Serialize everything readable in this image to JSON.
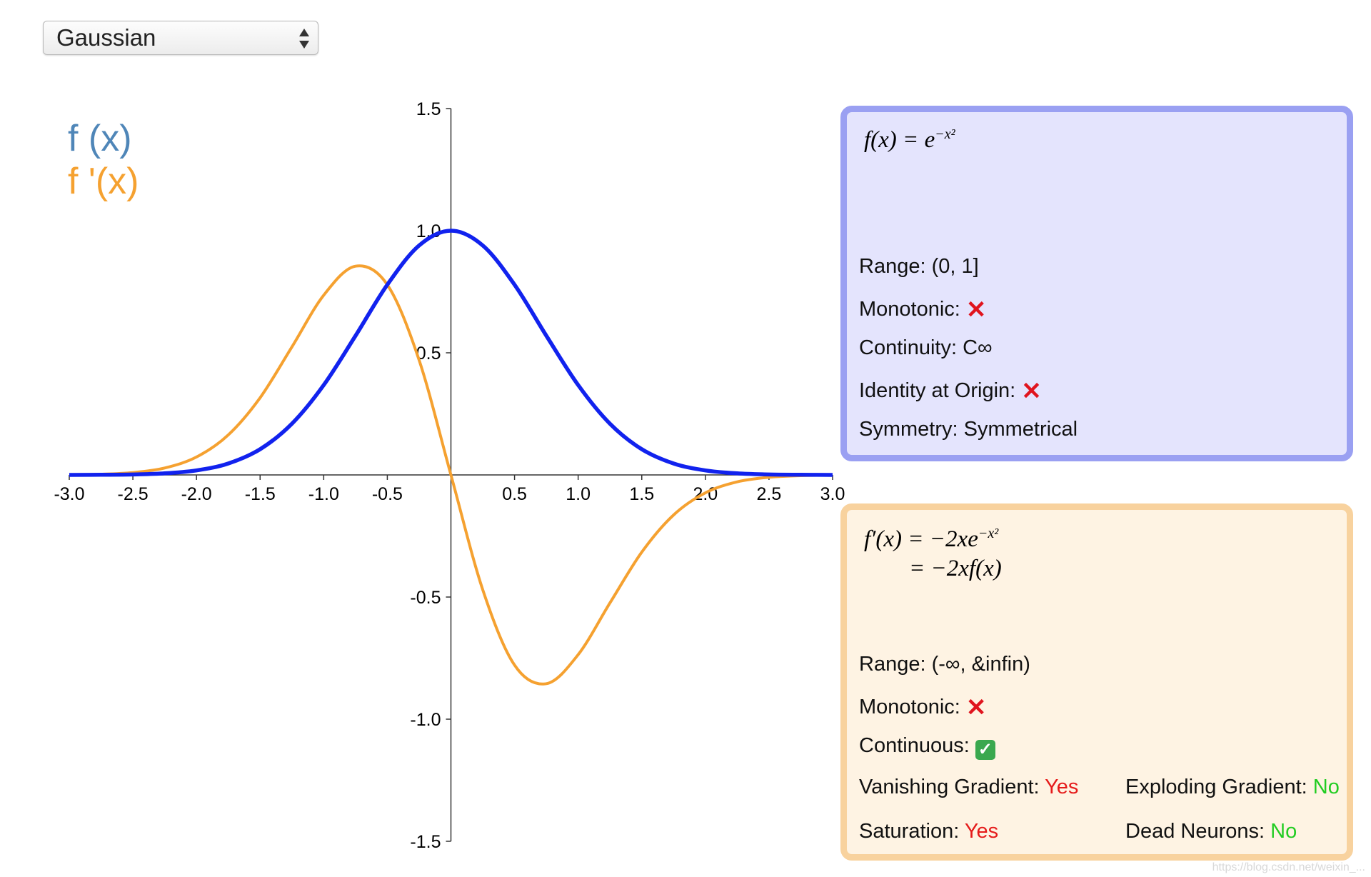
{
  "selector": {
    "value": "Gaussian",
    "icon": "updown-arrows-icon"
  },
  "legend": {
    "f_label": "f (x)",
    "fprime_label": "f '(x)"
  },
  "colors": {
    "f_curve": "#1122ee",
    "fprime_curve": "#f5a130",
    "legend_f": "#4f86b8",
    "legend_fprime": "#f5a130",
    "panel_f_bg": "#e4e4fd",
    "panel_f_border": "#9aa0f2",
    "panel_d_bg": "#fef3e3",
    "panel_d_border": "#f8d29e",
    "yes": "#e51a1a",
    "no": "#22cc22"
  },
  "chart_data": {
    "type": "line",
    "title": "",
    "xlabel": "",
    "ylabel": "",
    "xlim": [
      -3.0,
      3.0
    ],
    "ylim": [
      -1.5,
      1.5
    ],
    "x_ticks": [
      "-3.0",
      "-2.5",
      "-2.0",
      "-1.5",
      "-1.0",
      "-0.5",
      "0.5",
      "1.0",
      "1.5",
      "2.0",
      "2.5",
      "3.0"
    ],
    "y_ticks": [
      "1.5",
      "1.0",
      "0.5",
      "-0.5",
      "-1.0",
      "-1.5"
    ],
    "series": [
      {
        "name": "f (x)",
        "x": [
          -3.0,
          -2.75,
          -2.5,
          -2.25,
          -2.0,
          -1.75,
          -1.5,
          -1.25,
          -1.0,
          -0.75,
          -0.5,
          -0.25,
          0.0,
          0.25,
          0.5,
          0.75,
          1.0,
          1.25,
          1.5,
          1.75,
          2.0,
          2.25,
          2.5,
          2.75,
          3.0
        ],
        "y": [
          0.0001,
          0.0005,
          0.0019,
          0.0063,
          0.0183,
          0.0468,
          0.1054,
          0.2096,
          0.3679,
          0.5698,
          0.7788,
          0.9394,
          1.0,
          0.9394,
          0.7788,
          0.5698,
          0.3679,
          0.2096,
          0.1054,
          0.0468,
          0.0183,
          0.0063,
          0.0019,
          0.0005,
          0.0001
        ]
      },
      {
        "name": "f '(x)",
        "x": [
          -3.0,
          -2.75,
          -2.5,
          -2.25,
          -2.0,
          -1.75,
          -1.5,
          -1.25,
          -1.0,
          -0.75,
          -0.5,
          -0.25,
          0.0,
          0.25,
          0.5,
          0.75,
          1.0,
          1.25,
          1.5,
          1.75,
          2.0,
          2.25,
          2.5,
          2.75,
          3.0
        ],
        "y": [
          0.0007,
          0.0029,
          0.0097,
          0.0285,
          0.0733,
          0.1639,
          0.3162,
          0.524,
          0.7358,
          0.8546,
          0.7788,
          0.4697,
          0.0,
          -0.4697,
          -0.7788,
          -0.8546,
          -0.7358,
          -0.524,
          -0.3162,
          -0.1639,
          -0.0733,
          -0.0285,
          -0.0097,
          -0.0029,
          -0.0007
        ]
      }
    ]
  },
  "panel_f": {
    "formula_lhs": "f(x) = e",
    "formula_exp": "−x²",
    "range_label": "Range: (0, 1]",
    "monotonic_label": "Monotonic:",
    "monotonic_mark": "✕",
    "continuity_label": "Continuity: C∞",
    "identity_label": "Identity at Origin:",
    "identity_mark": "✕",
    "symmetry_label": "Symmetry: Symmetrical"
  },
  "panel_d": {
    "formula_line1_lhs": "f′(x) = −2xe",
    "formula_line1_exp": "−x²",
    "formula_line2": "= −2xf(x)",
    "range_label": "Range: (-∞, &infin)",
    "monotonic_label": "Monotonic:",
    "monotonic_mark": "✕",
    "continuous_label": "Continuous:",
    "continuous_mark": "✓",
    "vanishing_label": "Vanishing Gradient:",
    "vanishing_value": "Yes",
    "exploding_label": "Exploding Gradient:",
    "exploding_value": "No",
    "saturation_label": "Saturation:",
    "saturation_value": "Yes",
    "dead_label": "Dead Neurons:",
    "dead_value": "No"
  },
  "watermark": "https://blog.csdn.net/weixin_..."
}
